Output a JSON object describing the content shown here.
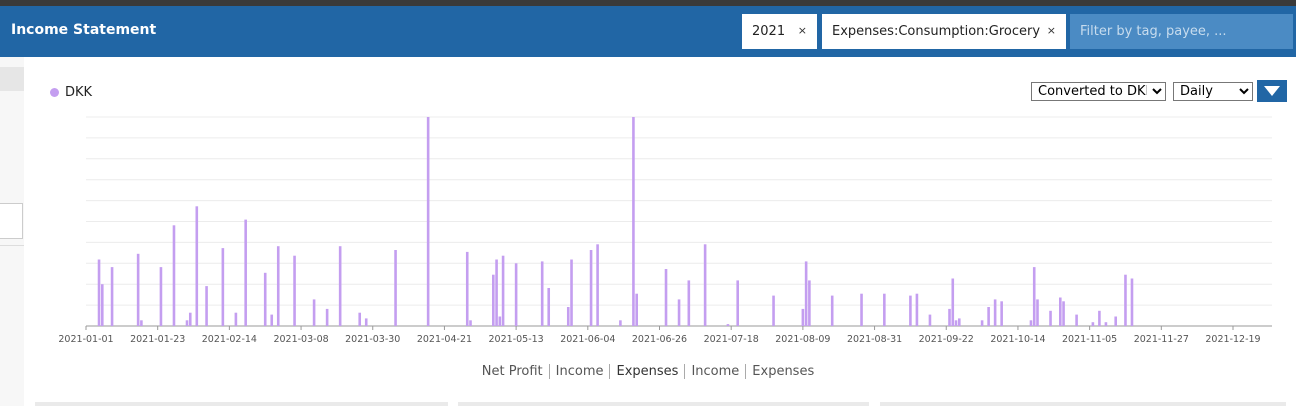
{
  "header": {
    "title": "Income Statement",
    "chips": [
      {
        "label": "2021",
        "close": "×"
      },
      {
        "label": "Expenses:Consumption:Grocery",
        "close": "×"
      }
    ],
    "filter_placeholder": "Filter by tag, payee, ..."
  },
  "controls": {
    "conversion_selected": "Converted to DKK",
    "interval_selected": "Daily"
  },
  "tabs": [
    {
      "label": "Net Profit",
      "active": false
    },
    {
      "label": "Income",
      "active": false
    },
    {
      "label": "Expenses",
      "active": true
    },
    {
      "label": "Income",
      "active": false
    },
    {
      "label": "Expenses",
      "active": false
    }
  ],
  "colors": {
    "header": "#2166a5",
    "bar": "#c49ef0"
  },
  "chart_data": {
    "type": "bar",
    "title": "",
    "legend": [
      "DKK"
    ],
    "legend_position": "top-left",
    "grid": true,
    "x_tick_labels": [
      "2021-01-01",
      "2021-01-23",
      "2021-02-14",
      "2021-03-08",
      "2021-03-30",
      "2021-04-21",
      "2021-05-13",
      "2021-06-04",
      "2021-06-26",
      "2021-07-18",
      "2021-08-09",
      "2021-08-31",
      "2021-09-22",
      "2021-10-14",
      "2021-11-05",
      "2021-11-27",
      "2021-12-19"
    ],
    "ylim": [
      0,
      1.1
    ],
    "series": [
      {
        "name": "DKK",
        "points": [
          {
            "x": "2021-01-05",
            "y": 0.35
          },
          {
            "x": "2021-01-06",
            "y": 0.22
          },
          {
            "x": "2021-01-09",
            "y": 0.31
          },
          {
            "x": "2021-01-17",
            "y": 0.38
          },
          {
            "x": "2021-01-18",
            "y": 0.03
          },
          {
            "x": "2021-01-24",
            "y": 0.31
          },
          {
            "x": "2021-01-28",
            "y": 0.53
          },
          {
            "x": "2021-02-01",
            "y": 0.03
          },
          {
            "x": "2021-02-02",
            "y": 0.07
          },
          {
            "x": "2021-02-04",
            "y": 0.63
          },
          {
            "x": "2021-02-07",
            "y": 0.21
          },
          {
            "x": "2021-02-12",
            "y": 0.41
          },
          {
            "x": "2021-02-16",
            "y": 0.07
          },
          {
            "x": "2021-02-19",
            "y": 0.56
          },
          {
            "x": "2021-02-25",
            "y": 0.28
          },
          {
            "x": "2021-02-27",
            "y": 0.06
          },
          {
            "x": "2021-03-01",
            "y": 0.42
          },
          {
            "x": "2021-03-06",
            "y": 0.37
          },
          {
            "x": "2021-03-12",
            "y": 0.14
          },
          {
            "x": "2021-03-16",
            "y": 0.09
          },
          {
            "x": "2021-03-20",
            "y": 0.42
          },
          {
            "x": "2021-03-26",
            "y": 0.07
          },
          {
            "x": "2021-03-28",
            "y": 0.04
          },
          {
            "x": "2021-04-06",
            "y": 0.4
          },
          {
            "x": "2021-04-16",
            "y": 1.1
          },
          {
            "x": "2021-04-28",
            "y": 0.39
          },
          {
            "x": "2021-04-29",
            "y": 0.03
          },
          {
            "x": "2021-05-06",
            "y": 0.27
          },
          {
            "x": "2021-05-07",
            "y": 0.35
          },
          {
            "x": "2021-05-08",
            "y": 0.05
          },
          {
            "x": "2021-05-09",
            "y": 0.37
          },
          {
            "x": "2021-05-13",
            "y": 0.33
          },
          {
            "x": "2021-05-21",
            "y": 0.34
          },
          {
            "x": "2021-05-23",
            "y": 0.2
          },
          {
            "x": "2021-05-29",
            "y": 0.1
          },
          {
            "x": "2021-05-30",
            "y": 0.35
          },
          {
            "x": "2021-06-05",
            "y": 0.4
          },
          {
            "x": "2021-06-07",
            "y": 0.43
          },
          {
            "x": "2021-06-14",
            "y": 0.03
          },
          {
            "x": "2021-06-18",
            "y": 1.1
          },
          {
            "x": "2021-06-19",
            "y": 0.17
          },
          {
            "x": "2021-06-28",
            "y": 0.3
          },
          {
            "x": "2021-07-02",
            "y": 0.14
          },
          {
            "x": "2021-07-05",
            "y": 0.24
          },
          {
            "x": "2021-07-10",
            "y": 0.43
          },
          {
            "x": "2021-07-17",
            "y": 0.01
          },
          {
            "x": "2021-07-20",
            "y": 0.24
          },
          {
            "x": "2021-07-31",
            "y": 0.16
          },
          {
            "x": "2021-08-09",
            "y": 0.09
          },
          {
            "x": "2021-08-10",
            "y": 0.34
          },
          {
            "x": "2021-08-11",
            "y": 0.24
          },
          {
            "x": "2021-08-18",
            "y": 0.16
          },
          {
            "x": "2021-08-27",
            "y": 0.17
          },
          {
            "x": "2021-09-03",
            "y": 0.17
          },
          {
            "x": "2021-09-11",
            "y": 0.16
          },
          {
            "x": "2021-09-13",
            "y": 0.17
          },
          {
            "x": "2021-09-17",
            "y": 0.06
          },
          {
            "x": "2021-09-23",
            "y": 0.09
          },
          {
            "x": "2021-09-24",
            "y": 0.25
          },
          {
            "x": "2021-09-25",
            "y": 0.03
          },
          {
            "x": "2021-09-26",
            "y": 0.04
          },
          {
            "x": "2021-10-03",
            "y": 0.03
          },
          {
            "x": "2021-10-05",
            "y": 0.1
          },
          {
            "x": "2021-10-07",
            "y": 0.14
          },
          {
            "x": "2021-10-09",
            "y": 0.13
          },
          {
            "x": "2021-10-18",
            "y": 0.03
          },
          {
            "x": "2021-10-19",
            "y": 0.31
          },
          {
            "x": "2021-10-20",
            "y": 0.14
          },
          {
            "x": "2021-10-24",
            "y": 0.08
          },
          {
            "x": "2021-10-27",
            "y": 0.15
          },
          {
            "x": "2021-10-28",
            "y": 0.13
          },
          {
            "x": "2021-11-01",
            "y": 0.06
          },
          {
            "x": "2021-11-06",
            "y": 0.02
          },
          {
            "x": "2021-11-08",
            "y": 0.08
          },
          {
            "x": "2021-11-10",
            "y": 0.02
          },
          {
            "x": "2021-11-13",
            "y": 0.05
          },
          {
            "x": "2021-11-16",
            "y": 0.27
          },
          {
            "x": "2021-11-18",
            "y": 0.25
          }
        ]
      }
    ]
  }
}
